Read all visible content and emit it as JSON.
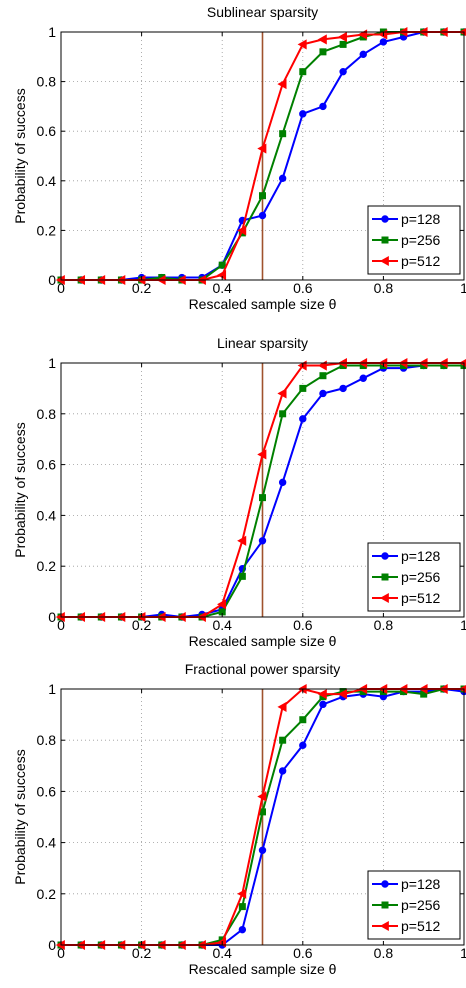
{
  "chart_data": [
    {
      "type": "line",
      "title": "Sublinear sparsity",
      "xlabel": "Rescaled sample size θ",
      "ylabel": "Probability of success",
      "xlim": [
        0,
        1
      ],
      "ylim": [
        0,
        1
      ],
      "xticks": [
        "0",
        "0.2",
        "0.4",
        "0.6",
        "0.8",
        "1"
      ],
      "yticks": [
        "0",
        "0.2",
        "0.4",
        "0.6",
        "0.8",
        "1"
      ],
      "grid": true,
      "legend_position": "bottom-right",
      "vline_x": 0.5,
      "x": [
        0,
        0.05,
        0.1,
        0.15,
        0.2,
        0.25,
        0.3,
        0.35,
        0.4,
        0.45,
        0.5,
        0.55,
        0.6,
        0.65,
        0.7,
        0.75,
        0.8,
        0.85,
        0.9,
        0.95,
        1.0
      ],
      "series": [
        {
          "name": "p=128",
          "color": "#0000ff",
          "marker": "circle",
          "values": [
            0,
            0,
            0,
            0,
            0.01,
            0.01,
            0.01,
            0.01,
            0.06,
            0.24,
            0.26,
            0.41,
            0.67,
            0.7,
            0.84,
            0.91,
            0.96,
            0.98,
            1,
            1,
            1
          ]
        },
        {
          "name": "p=256",
          "color": "#008000",
          "marker": "square",
          "values": [
            0,
            0,
            0,
            0,
            0,
            0.01,
            0,
            0,
            0.06,
            0.19,
            0.34,
            0.59,
            0.84,
            0.92,
            0.95,
            0.98,
            1,
            1,
            1,
            1,
            1
          ]
        },
        {
          "name": "p=512",
          "color": "#ff0000",
          "marker": "triangle",
          "values": [
            0,
            0,
            0,
            0,
            0,
            0,
            0,
            0,
            0.02,
            0.2,
            0.53,
            0.79,
            0.95,
            0.97,
            0.98,
            0.99,
            0.99,
            1,
            1,
            1,
            1
          ]
        }
      ]
    },
    {
      "type": "line",
      "title": "Linear sparsity",
      "xlabel": "Rescaled sample size θ",
      "ylabel": "Probability of success",
      "xlim": [
        0,
        1
      ],
      "ylim": [
        0,
        1
      ],
      "xticks": [
        "0",
        "0.2",
        "0.4",
        "0.6",
        "0.8",
        "1"
      ],
      "yticks": [
        "0",
        "0.2",
        "0.4",
        "0.6",
        "0.8",
        "1"
      ],
      "grid": true,
      "legend_position": "bottom-right",
      "vline_x": 0.5,
      "x": [
        0,
        0.05,
        0.1,
        0.15,
        0.2,
        0.25,
        0.3,
        0.35,
        0.4,
        0.45,
        0.5,
        0.55,
        0.6,
        0.65,
        0.7,
        0.75,
        0.8,
        0.85,
        0.9,
        0.95,
        1.0
      ],
      "series": [
        {
          "name": "p=128",
          "color": "#0000ff",
          "marker": "circle",
          "values": [
            0,
            0,
            0,
            0,
            0,
            0.01,
            0,
            0.01,
            0.03,
            0.19,
            0.3,
            0.53,
            0.78,
            0.88,
            0.9,
            0.94,
            0.98,
            0.98,
            0.99,
            0.99,
            0.99
          ]
        },
        {
          "name": "p=256",
          "color": "#008000",
          "marker": "square",
          "values": [
            0,
            0,
            0,
            0,
            0,
            0,
            0,
            0,
            0.02,
            0.16,
            0.47,
            0.8,
            0.9,
            0.95,
            0.99,
            0.99,
            0.99,
            0.99,
            0.99,
            0.99,
            0.99
          ]
        },
        {
          "name": "p=512",
          "color": "#ff0000",
          "marker": "triangle",
          "values": [
            0,
            0,
            0,
            0,
            0,
            0,
            0,
            0,
            0.05,
            0.3,
            0.64,
            0.88,
            0.99,
            0.99,
            1,
            1,
            1,
            1,
            1,
            1,
            1
          ]
        }
      ]
    },
    {
      "type": "line",
      "title": "Fractional power sparsity",
      "xlabel": "Rescaled sample size θ",
      "ylabel": "Probability of success",
      "xlim": [
        0,
        1
      ],
      "ylim": [
        0,
        1
      ],
      "xticks": [
        "0",
        "0.2",
        "0.4",
        "0.6",
        "0.8",
        "1"
      ],
      "yticks": [
        "0",
        "0.2",
        "0.4",
        "0.6",
        "0.8",
        "1"
      ],
      "grid": true,
      "legend_position": "bottom-right",
      "vline_x": 0.5,
      "x": [
        0,
        0.05,
        0.1,
        0.15,
        0.2,
        0.25,
        0.3,
        0.35,
        0.4,
        0.45,
        0.5,
        0.55,
        0.6,
        0.65,
        0.7,
        0.75,
        0.8,
        0.85,
        0.9,
        0.95,
        1.0
      ],
      "series": [
        {
          "name": "p=128",
          "color": "#0000ff",
          "marker": "circle",
          "values": [
            0,
            0,
            0,
            0,
            0,
            0,
            0,
            0,
            0,
            0.06,
            0.37,
            0.68,
            0.78,
            0.94,
            0.97,
            0.98,
            0.97,
            0.99,
            0.99,
            1,
            0.99
          ]
        },
        {
          "name": "p=256",
          "color": "#008000",
          "marker": "square",
          "values": [
            0,
            0,
            0,
            0,
            0,
            0,
            0,
            0,
            0.02,
            0.15,
            0.52,
            0.8,
            0.88,
            0.97,
            0.99,
            0.99,
            0.99,
            0.99,
            0.98,
            1,
            1
          ]
        },
        {
          "name": "p=512",
          "color": "#ff0000",
          "marker": "triangle",
          "values": [
            0,
            0,
            0,
            0,
            0,
            0,
            0,
            0,
            0.01,
            0.2,
            0.58,
            0.93,
            1,
            0.98,
            0.98,
            1,
            1,
            1,
            1,
            1,
            1
          ]
        }
      ]
    }
  ]
}
